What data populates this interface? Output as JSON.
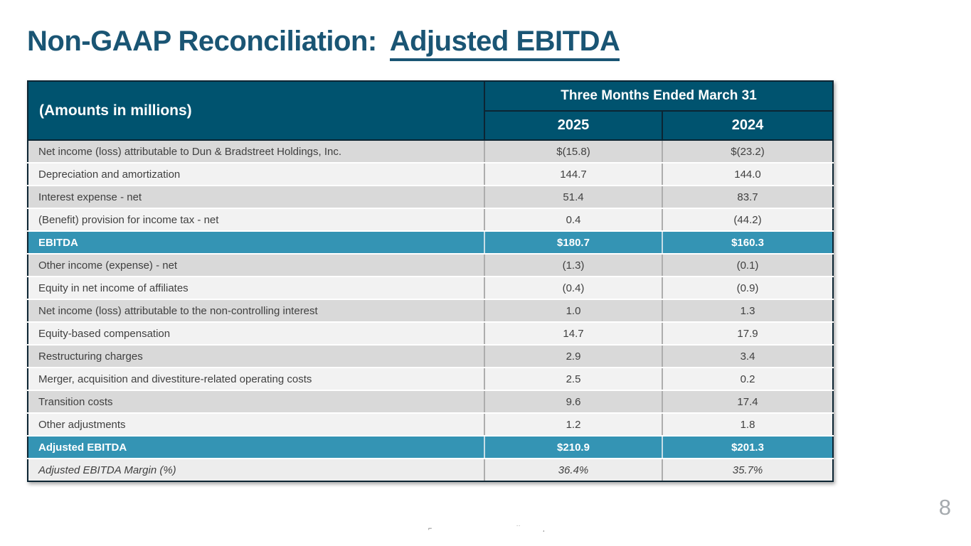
{
  "slide": {
    "title": {
      "prefix": "Non-GAAP Reconciliation:",
      "emphasis": "Adjusted EBITDA"
    },
    "page_number": "8",
    "footer_fragments": [
      "⌐",
      "˙˙",
      "¸"
    ]
  },
  "table": {
    "corner_header": "(Amounts in millions)",
    "period_header": "Three Months Ended March 31",
    "years": [
      "2025",
      "2024"
    ],
    "rows": [
      {
        "label": "Net income (loss) attributable to Dun & Bradstreet Holdings, Inc.",
        "v2025": "$(15.8)",
        "v2024": "$(23.2)",
        "style": "dark"
      },
      {
        "label": "Depreciation and amortization",
        "v2025": "144.7",
        "v2024": "144.0",
        "style": "light"
      },
      {
        "label": "Interest expense - net",
        "v2025": "51.4",
        "v2024": "83.7",
        "style": "dark"
      },
      {
        "label": "(Benefit) provision for income tax - net",
        "v2025": "0.4",
        "v2024": "(44.2)",
        "style": "light"
      },
      {
        "label": "EBITDA",
        "v2025": "$180.7",
        "v2024": "$160.3",
        "style": "highlight"
      },
      {
        "label": "Other income (expense) - net",
        "v2025": "(1.3)",
        "v2024": "(0.1)",
        "style": "dark"
      },
      {
        "label": "Equity in net income of affiliates",
        "v2025": "(0.4)",
        "v2024": "(0.9)",
        "style": "light"
      },
      {
        "label": "Net income (loss) attributable to the non-controlling interest",
        "v2025": "1.0",
        "v2024": "1.3",
        "style": "dark"
      },
      {
        "label": "Equity-based compensation",
        "v2025": "14.7",
        "v2024": "17.9",
        "style": "light"
      },
      {
        "label": "Restructuring charges",
        "v2025": "2.9",
        "v2024": "3.4",
        "style": "dark"
      },
      {
        "label": "Merger, acquisition and divestiture-related operating costs",
        "v2025": "2.5",
        "v2024": "0.2",
        "style": "light"
      },
      {
        "label": "Transition costs",
        "v2025": "9.6",
        "v2024": "17.4",
        "style": "dark"
      },
      {
        "label": "Other adjustments",
        "v2025": "1.2",
        "v2024": "1.8",
        "style": "light"
      },
      {
        "label": "Adjusted EBITDA",
        "v2025": "$210.9",
        "v2024": "$201.3",
        "style": "highlight"
      },
      {
        "label": "Adjusted EBITDA Margin (%)",
        "v2025": "36.4%",
        "v2024": "35.7%",
        "style": "margin"
      }
    ]
  },
  "colors": {
    "title": "#1A5574",
    "header_bg": "#00536F",
    "highlight_bg": "#3494B4",
    "row_dark": "#D9D9D9",
    "row_light": "#F2F2F2",
    "margin_row_bg": "#EDEDED",
    "body_text": "#404040",
    "page_number": "#A5AAAE"
  }
}
